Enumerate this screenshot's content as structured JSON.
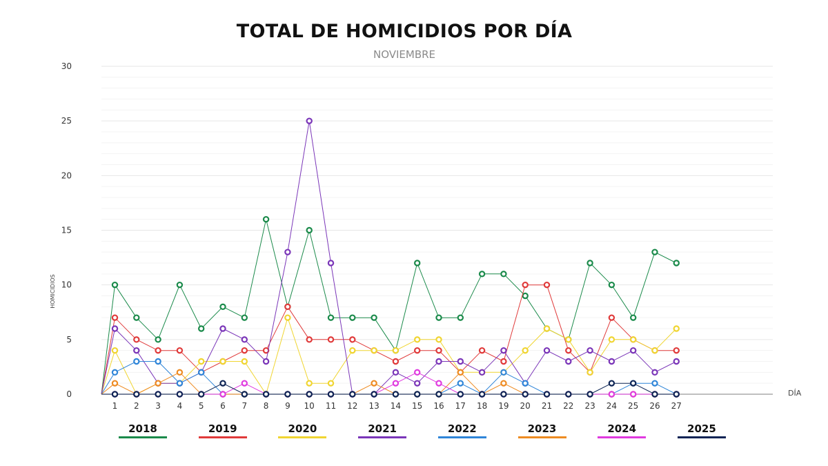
{
  "chart_data": {
    "type": "line",
    "title": "TOTAL DE HOMICIDIOS POR DÍA",
    "subtitle": "NOVIEMBRE",
    "xlabel": "DÍA",
    "ylabel": "HOMICIDIOS",
    "ylim": [
      0,
      30
    ],
    "yticks": [
      0,
      5,
      10,
      15,
      20,
      25,
      30
    ],
    "x": [
      1,
      2,
      3,
      4,
      5,
      6,
      7,
      8,
      9,
      10,
      11,
      12,
      13,
      14,
      15,
      16,
      17,
      18,
      19,
      20,
      21,
      22,
      23,
      24,
      25,
      26,
      27
    ],
    "series": [
      {
        "name": "2018",
        "color": "#1a8a4a",
        "values": [
          10,
          7,
          5,
          10,
          6,
          8,
          7,
          16,
          8,
          15,
          7,
          7,
          7,
          4,
          12,
          7,
          7,
          11,
          11,
          9,
          6,
          5,
          12,
          10,
          7,
          13,
          12
        ]
      },
      {
        "name": "2019",
        "color": "#e03a3a",
        "values": [
          7,
          5,
          4,
          4,
          2,
          3,
          4,
          4,
          8,
          5,
          5,
          5,
          4,
          3,
          4,
          4,
          2,
          4,
          3,
          10,
          10,
          4,
          2,
          7,
          5,
          4,
          4
        ]
      },
      {
        "name": "2020",
        "color": "#f0d531",
        "values": [
          4,
          0,
          1,
          1,
          3,
          3,
          3,
          0,
          7,
          1,
          1,
          4,
          4,
          4,
          5,
          5,
          2,
          2,
          2,
          4,
          6,
          5,
          2,
          5,
          5,
          4,
          6
        ]
      },
      {
        "name": "2021",
        "color": "#7a35b8",
        "values": [
          6,
          4,
          1,
          1,
          2,
          6,
          5,
          3,
          13,
          25,
          12,
          0,
          0,
          2,
          1,
          3,
          3,
          2,
          4,
          1,
          4,
          3,
          4,
          3,
          4,
          2,
          3
        ]
      },
      {
        "name": "2022",
        "color": "#2f85d8",
        "values": [
          2,
          3,
          3,
          1,
          2,
          0,
          0,
          0,
          0,
          0,
          0,
          0,
          0,
          0,
          0,
          0,
          1,
          0,
          2,
          1,
          0,
          0,
          0,
          0,
          1,
          1,
          0
        ]
      },
      {
        "name": "2023",
        "color": "#ee8b22",
        "values": [
          1,
          0,
          1,
          2,
          0,
          0,
          0,
          0,
          0,
          0,
          0,
          0,
          1,
          0,
          0,
          0,
          2,
          0,
          1,
          0,
          0,
          0,
          0,
          0,
          0,
          0,
          0
        ]
      },
      {
        "name": "2024",
        "color": "#e03adf",
        "values": [
          0,
          0,
          0,
          0,
          0,
          0,
          1,
          0,
          0,
          0,
          0,
          0,
          0,
          1,
          2,
          1,
          0,
          0,
          0,
          0,
          0,
          0,
          0,
          0,
          0,
          0,
          0
        ]
      },
      {
        "name": "2025",
        "color": "#0d2454",
        "values": [
          0,
          0,
          0,
          0,
          0,
          1,
          0,
          0,
          0,
          0,
          0,
          0,
          0,
          0,
          0,
          0,
          0,
          0,
          0,
          0,
          0,
          0,
          0,
          1,
          1,
          0,
          0
        ]
      }
    ]
  }
}
